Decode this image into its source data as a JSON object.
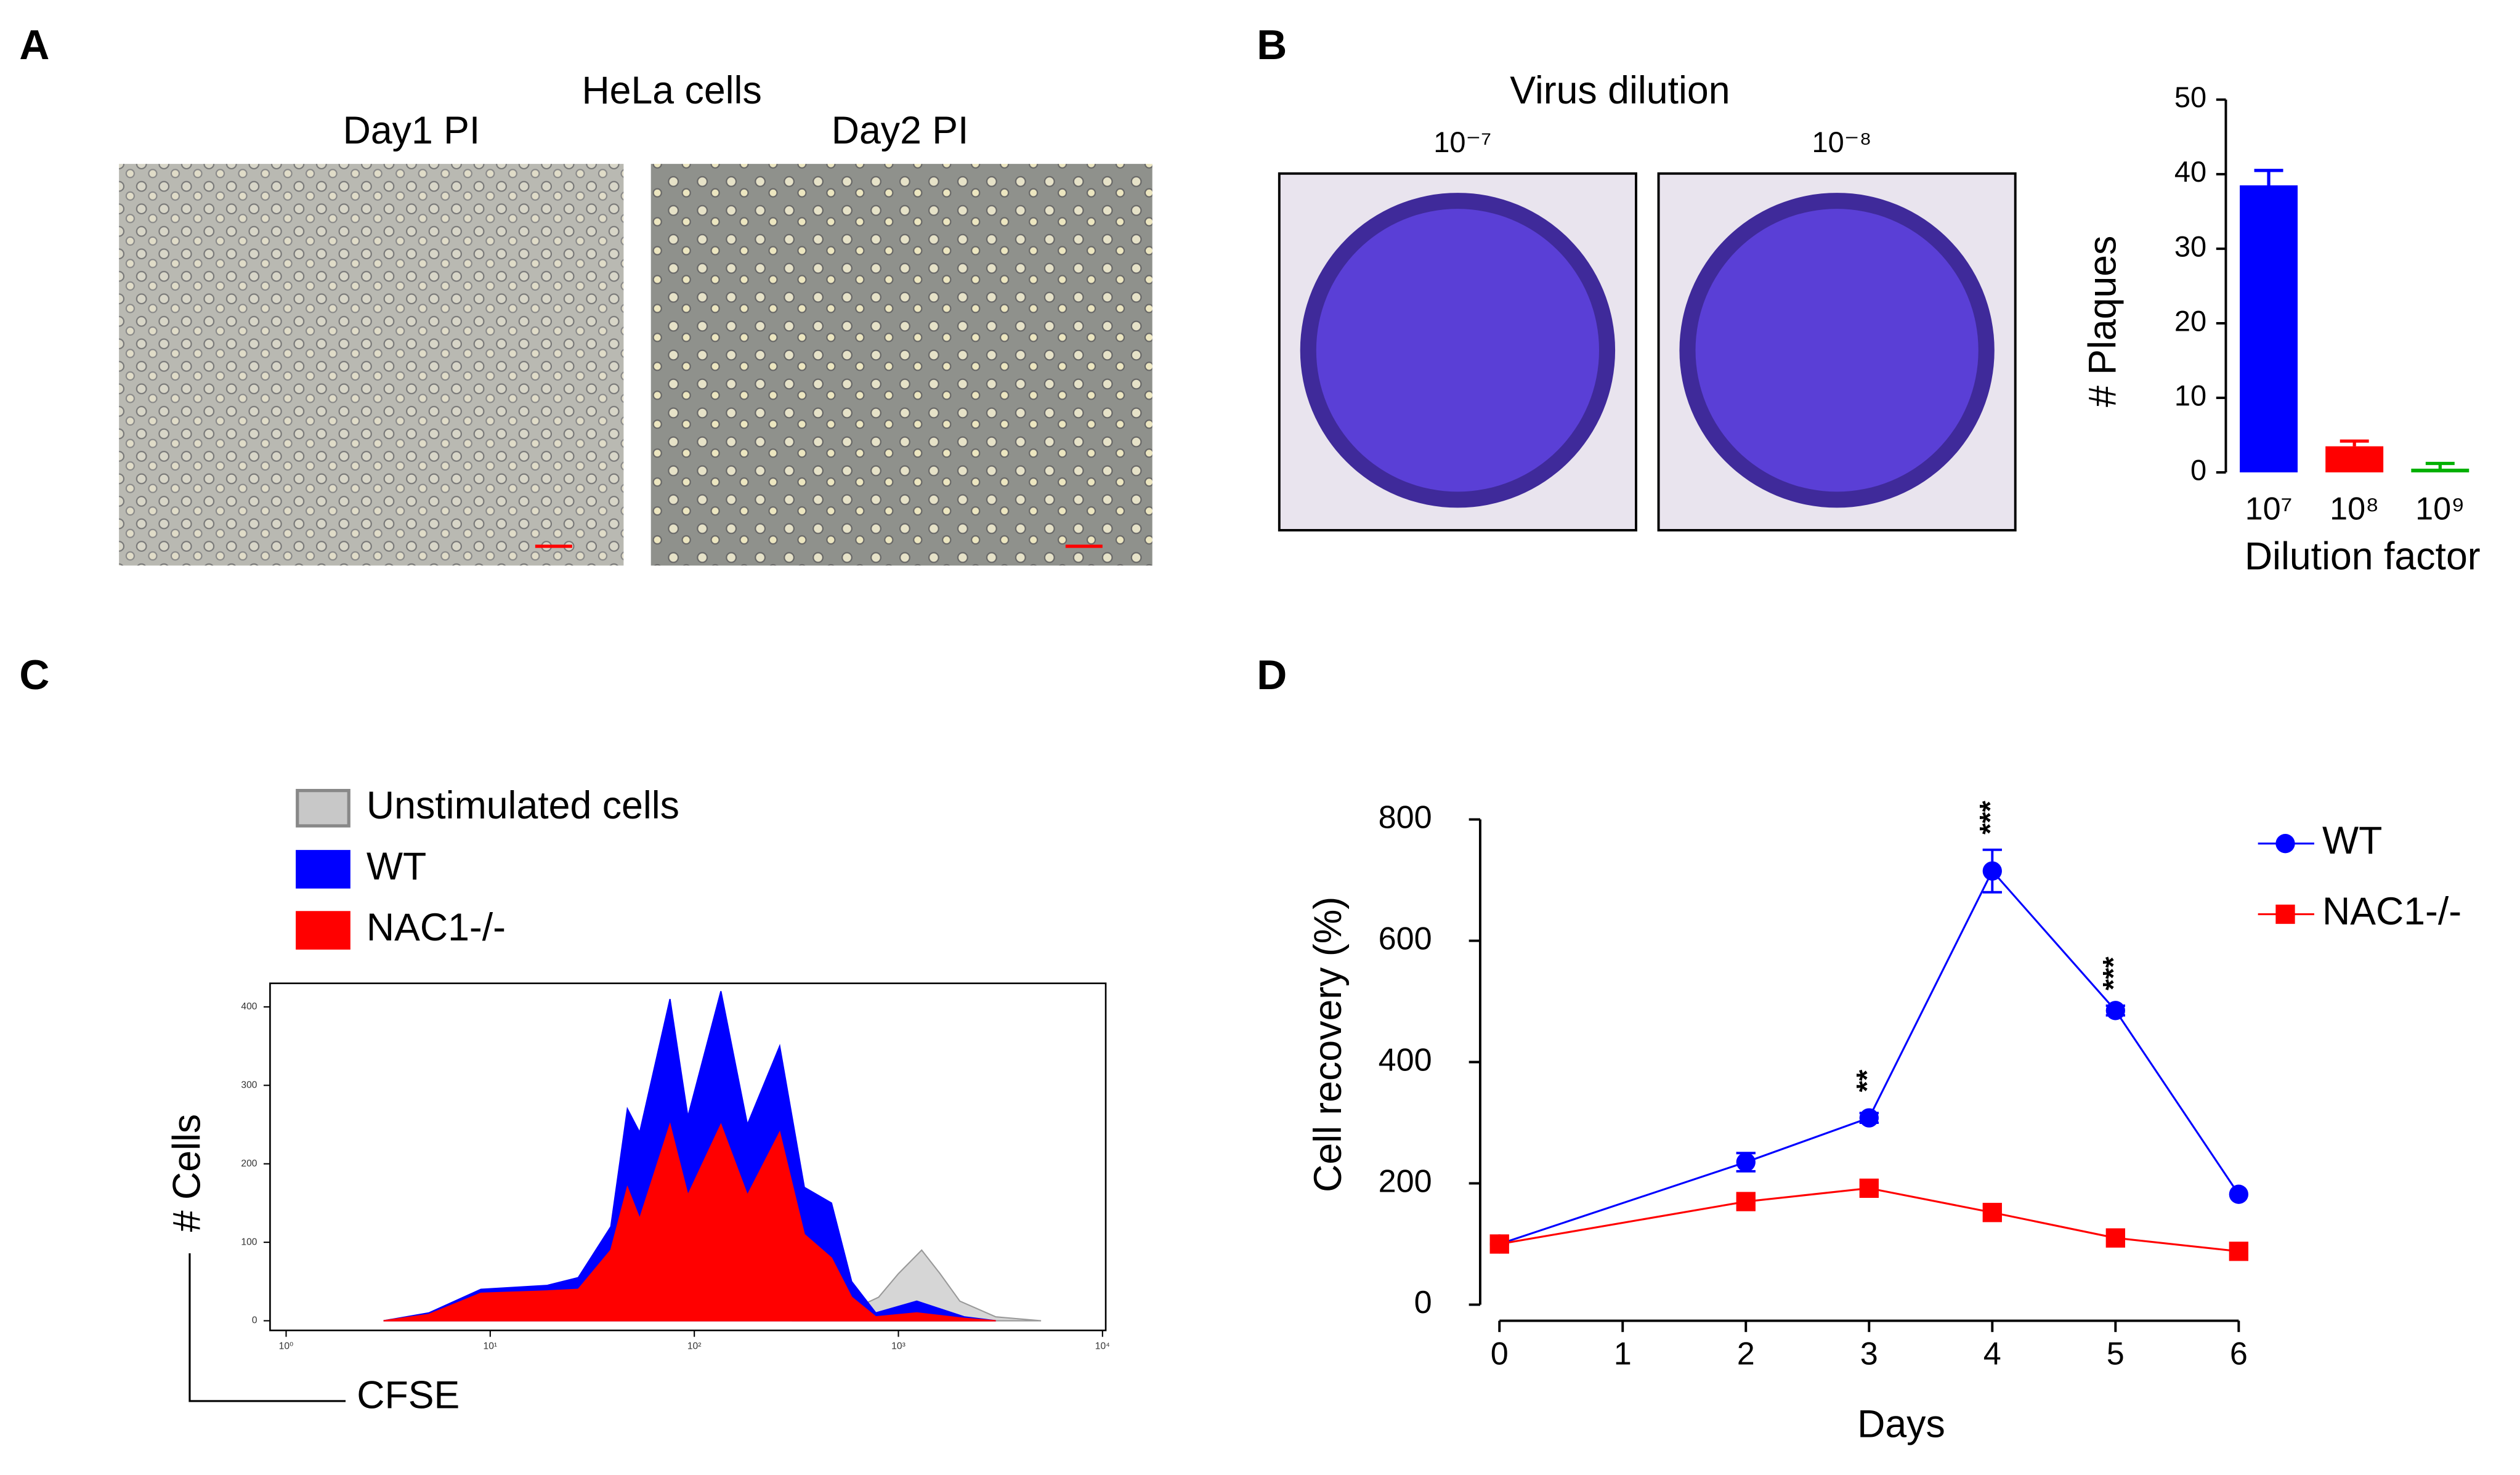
{
  "panel_labels": [
    "A",
    "B",
    "C",
    "D"
  ],
  "panel_a": {
    "title": "HeLa cells",
    "images": [
      "Day1 PI",
      "Day2 PI"
    ]
  },
  "panel_b": {
    "title": "Virus dilution",
    "images": [
      "10⁻⁷",
      "10⁻⁸"
    ]
  },
  "chart_data": [
    {
      "type": "bar",
      "categories": [
        "10⁷",
        "10⁸",
        "10⁹"
      ],
      "values": [
        38.5,
        3.5,
        0.5
      ],
      "errors": [
        2,
        0.7,
        0.7
      ],
      "colors": [
        "#0000ff",
        "#ff0000",
        "#00b000"
      ],
      "ylabel": "# Plaques",
      "xlabel": "Dilution factor",
      "ylim": [
        0,
        50
      ],
      "yticks": [
        0,
        10,
        20,
        30,
        40,
        50
      ]
    },
    {
      "type": "area",
      "xlabel": "CFSE",
      "ylabel": "# Cells",
      "log_x": true,
      "xlim": [
        1,
        10000
      ],
      "xticks": [
        {
          "value": 1,
          "label": "10⁰"
        },
        {
          "value": 10,
          "label": "10¹"
        },
        {
          "value": 100,
          "label": "10²"
        },
        {
          "value": 1000,
          "label": "10³"
        },
        {
          "value": 10000,
          "label": "10⁴"
        }
      ],
      "ylim": [
        0,
        430
      ],
      "yticks": [
        0,
        100,
        200,
        300,
        400
      ],
      "series": [
        {
          "name": "Unstimulated cells",
          "color": "#c8c8c8",
          "x": [
            300,
            500,
            800,
            1000,
            1300,
            1600,
            2000,
            3000,
            5000
          ],
          "values": [
            0,
            5,
            30,
            60,
            90,
            60,
            25,
            5,
            0
          ]
        },
        {
          "name": "WT",
          "color": "#0000ff",
          "x": [
            3,
            5,
            9,
            19,
            27,
            39,
            47,
            54,
            76,
            93,
            135,
            182,
            262,
            346,
            470,
            590,
            775,
            1230,
            2100,
            3000
          ],
          "values": [
            0,
            10,
            40,
            45,
            55,
            120,
            270,
            240,
            410,
            260,
            420,
            250,
            350,
            170,
            150,
            50,
            10,
            25,
            5,
            0
          ]
        },
        {
          "name": "NAC1-/-",
          "color": "#ff0000",
          "x": [
            3,
            5,
            9,
            19,
            27,
            39,
            47,
            54,
            76,
            93,
            135,
            182,
            262,
            346,
            470,
            590,
            775,
            1230,
            2100,
            3000
          ],
          "values": [
            0,
            8,
            35,
            38,
            40,
            90,
            170,
            130,
            250,
            160,
            250,
            160,
            240,
            110,
            80,
            30,
            5,
            10,
            3,
            0
          ]
        }
      ]
    },
    {
      "type": "line",
      "xlabel": "Days",
      "ylabel": "Cell recovery (%)",
      "x": [
        0,
        2,
        3,
        4,
        5,
        6
      ],
      "xlim": [
        0,
        6
      ],
      "xticks": [
        0,
        1,
        2,
        3,
        4,
        5,
        6
      ],
      "ylim": [
        0,
        800
      ],
      "yticks": [
        0,
        200,
        400,
        600,
        800
      ],
      "series": [
        {
          "name": "WT",
          "color": "#0000ff",
          "marker": "circle",
          "values": [
            100,
            235,
            308,
            715,
            485,
            182
          ],
          "errors": [
            0,
            15,
            8,
            35,
            8,
            0
          ]
        },
        {
          "name": "NAC1-/-",
          "color": "#ff0000",
          "marker": "square",
          "values": [
            100,
            170,
            192,
            152,
            110,
            88
          ],
          "errors": [
            0,
            0,
            0,
            0,
            0,
            0
          ]
        }
      ],
      "annotations": [
        {
          "x": 3,
          "text": "**"
        },
        {
          "x": 4,
          "text": "***"
        },
        {
          "x": 5,
          "text": "***"
        }
      ]
    }
  ]
}
